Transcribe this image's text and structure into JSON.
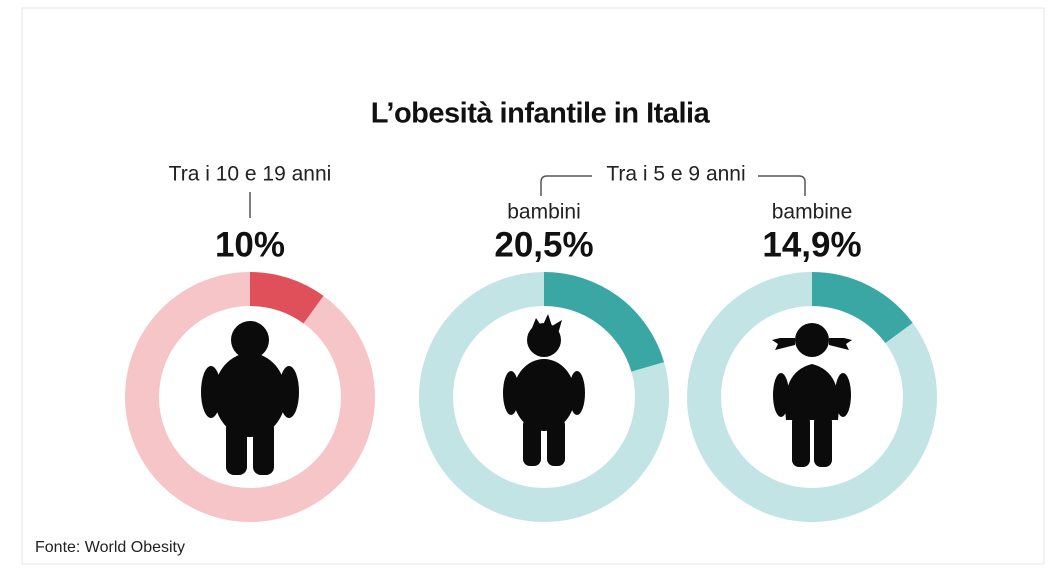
{
  "title": "L’obesità infantile in Italia",
  "group_label": "Tra i 5 e 9 anni",
  "source": "Fonte: World Obesity",
  "chart_data": [
    {
      "type": "donut",
      "label": "Tra i 10 e 19 anni",
      "values": [
        10
      ],
      "value_labels": [
        "10%"
      ],
      "color": "#e0505a",
      "track_color": "#f5c5c8"
    },
    {
      "type": "donut",
      "label": "bambini",
      "values": [
        20.5
      ],
      "value_labels": [
        "20,5%"
      ],
      "color": "#3aa7a5",
      "track_color": "#c2e4e4"
    },
    {
      "type": "donut",
      "label": "bambine",
      "values": [
        14.9
      ],
      "value_labels": [
        "14,9%"
      ],
      "color": "#3aa7a5",
      "track_color": "#c2e4e4"
    }
  ]
}
